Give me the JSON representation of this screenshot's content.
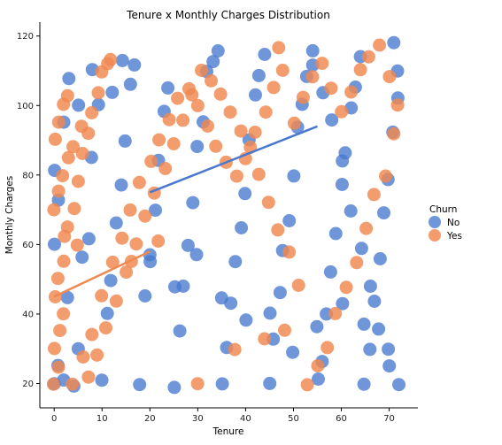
{
  "chart_data": {
    "type": "scatter",
    "title": "Tenure x Monthly Charges Distribution",
    "xlabel": "Tenure",
    "ylabel": "Monthly Charges",
    "xlim": [
      -3,
      76
    ],
    "ylim": [
      13,
      124
    ],
    "xticks": [
      0,
      10,
      20,
      30,
      40,
      50,
      60,
      70
    ],
    "yticks": [
      20,
      40,
      60,
      80,
      100,
      120
    ],
    "grid": false,
    "legend": {
      "title": "Churn",
      "placement": "right",
      "entries": [
        "No",
        "Yes"
      ]
    },
    "series": [
      {
        "name": "No",
        "color": "#4878CF",
        "points": [
          [
            0,
            20
          ],
          [
            1,
            25
          ],
          [
            2,
            21
          ],
          [
            3,
            45
          ],
          [
            0,
            60
          ],
          [
            1,
            73
          ],
          [
            0,
            81
          ],
          [
            2,
            95
          ],
          [
            4,
            19
          ],
          [
            5,
            30
          ],
          [
            6,
            56
          ],
          [
            7,
            62
          ],
          [
            8,
            85
          ],
          [
            9,
            100
          ],
          [
            10,
            21
          ],
          [
            11,
            40
          ],
          [
            12,
            50
          ],
          [
            13,
            66
          ],
          [
            14,
            77
          ],
          [
            15,
            90
          ],
          [
            16,
            106
          ],
          [
            17,
            112
          ],
          [
            18,
            20
          ],
          [
            19,
            45
          ],
          [
            20,
            55
          ],
          [
            21,
            70
          ],
          [
            22,
            84
          ],
          [
            23,
            98
          ],
          [
            24,
            105
          ],
          [
            25,
            19
          ],
          [
            26,
            35
          ],
          [
            27,
            48
          ],
          [
            28,
            60
          ],
          [
            29,
            72
          ],
          [
            30,
            88
          ],
          [
            31,
            95
          ],
          [
            32,
            110
          ],
          [
            33,
            113
          ],
          [
            34,
            116
          ],
          [
            35,
            20
          ],
          [
            36,
            30
          ],
          [
            37,
            43
          ],
          [
            38,
            55
          ],
          [
            39,
            65
          ],
          [
            40,
            75
          ],
          [
            41,
            90
          ],
          [
            42,
            103
          ],
          [
            43,
            109
          ],
          [
            44,
            115
          ],
          [
            45,
            20
          ],
          [
            46,
            33
          ],
          [
            47,
            46
          ],
          [
            48,
            58
          ],
          [
            49,
            67
          ],
          [
            50,
            80
          ],
          [
            51,
            94
          ],
          [
            52,
            100
          ],
          [
            53,
            108
          ],
          [
            54,
            116
          ],
          [
            55,
            21
          ],
          [
            56,
            26
          ],
          [
            57,
            40
          ],
          [
            58,
            52
          ],
          [
            59,
            63
          ],
          [
            60,
            77
          ],
          [
            61,
            86
          ],
          [
            62,
            99
          ],
          [
            63,
            105
          ],
          [
            64,
            114
          ],
          [
            65,
            20
          ],
          [
            66,
            30
          ],
          [
            67,
            44
          ],
          [
            68,
            56
          ],
          [
            69,
            69
          ],
          [
            70,
            79
          ],
          [
            71,
            92
          ],
          [
            72,
            102
          ],
          [
            72,
            110
          ],
          [
            71,
            118
          ],
          [
            72,
            20
          ],
          [
            70,
            25
          ],
          [
            68,
            36
          ],
          [
            66,
            48
          ],
          [
            64,
            59
          ],
          [
            62,
            70
          ],
          [
            60,
            84
          ],
          [
            58,
            96
          ],
          [
            56,
            104
          ],
          [
            54,
            112
          ],
          [
            3,
            108
          ],
          [
            8,
            110
          ],
          [
            14,
            113
          ],
          [
            5,
            100
          ],
          [
            12,
            104
          ],
          [
            20,
            57
          ],
          [
            25,
            48
          ],
          [
            30,
            57
          ],
          [
            35,
            45
          ],
          [
            40,
            38
          ],
          [
            45,
            40
          ],
          [
            50,
            29
          ],
          [
            55,
            36
          ],
          [
            60,
            43
          ],
          [
            65,
            37
          ],
          [
            70,
            30
          ]
        ],
        "trend": [
          [
            20,
            75
          ],
          [
            55,
            94
          ]
        ]
      },
      {
        "name": "Yes",
        "color": "#F0884F",
        "points": [
          [
            0,
            20
          ],
          [
            1,
            25
          ],
          [
            0,
            30
          ],
          [
            1,
            35
          ],
          [
            2,
            40
          ],
          [
            0,
            45
          ],
          [
            1,
            50
          ],
          [
            2,
            55
          ],
          [
            0,
            70
          ],
          [
            1,
            75
          ],
          [
            2,
            80
          ],
          [
            3,
            85
          ],
          [
            0,
            90
          ],
          [
            1,
            95
          ],
          [
            2,
            100
          ],
          [
            3,
            103
          ],
          [
            4,
            70
          ],
          [
            5,
            78
          ],
          [
            6,
            86
          ],
          [
            7,
            92
          ],
          [
            8,
            98
          ],
          [
            9,
            104
          ],
          [
            10,
            110
          ],
          [
            11,
            112
          ],
          [
            12,
            113
          ],
          [
            4,
            20
          ],
          [
            6,
            28
          ],
          [
            8,
            34
          ],
          [
            10,
            45
          ],
          [
            12,
            55
          ],
          [
            14,
            62
          ],
          [
            16,
            70
          ],
          [
            18,
            78
          ],
          [
            20,
            84
          ],
          [
            22,
            90
          ],
          [
            24,
            96
          ],
          [
            26,
            102
          ],
          [
            28,
            105
          ],
          [
            30,
            100
          ],
          [
            32,
            94
          ],
          [
            34,
            88
          ],
          [
            36,
            84
          ],
          [
            38,
            80
          ],
          [
            40,
            85
          ],
          [
            42,
            92
          ],
          [
            44,
            98
          ],
          [
            46,
            105
          ],
          [
            48,
            110
          ],
          [
            47,
            117
          ],
          [
            50,
            95
          ],
          [
            52,
            102
          ],
          [
            54,
            108
          ],
          [
            56,
            112
          ],
          [
            58,
            105
          ],
          [
            60,
            98
          ],
          [
            62,
            104
          ],
          [
            64,
            110
          ],
          [
            66,
            114
          ],
          [
            68,
            117
          ],
          [
            70,
            108
          ],
          [
            72,
            100
          ],
          [
            71,
            92
          ],
          [
            69,
            80
          ],
          [
            67,
            74
          ],
          [
            65,
            65
          ],
          [
            63,
            55
          ],
          [
            61,
            48
          ],
          [
            59,
            40
          ],
          [
            57,
            30
          ],
          [
            55,
            25
          ],
          [
            53,
            20
          ],
          [
            51,
            48
          ],
          [
            49,
            58
          ],
          [
            47,
            64
          ],
          [
            45,
            72
          ],
          [
            43,
            80
          ],
          [
            41,
            88
          ],
          [
            39,
            93
          ],
          [
            37,
            98
          ],
          [
            35,
            103
          ],
          [
            33,
            107
          ],
          [
            31,
            110
          ],
          [
            29,
            103
          ],
          [
            27,
            96
          ],
          [
            25,
            89
          ],
          [
            23,
            82
          ],
          [
            21,
            75
          ],
          [
            19,
            68
          ],
          [
            17,
            60
          ],
          [
            15,
            52
          ],
          [
            13,
            44
          ],
          [
            11,
            36
          ],
          [
            9,
            28
          ],
          [
            7,
            22
          ],
          [
            5,
            60
          ],
          [
            3,
            65
          ],
          [
            2,
            62
          ],
          [
            4,
            88
          ],
          [
            6,
            94
          ],
          [
            16,
            55
          ],
          [
            22,
            61
          ],
          [
            30,
            20
          ],
          [
            38,
            30
          ],
          [
            44,
            33
          ],
          [
            48,
            35
          ]
        ],
        "trend": [
          [
            0,
            45
          ],
          [
            20,
            58
          ]
        ]
      }
    ]
  }
}
